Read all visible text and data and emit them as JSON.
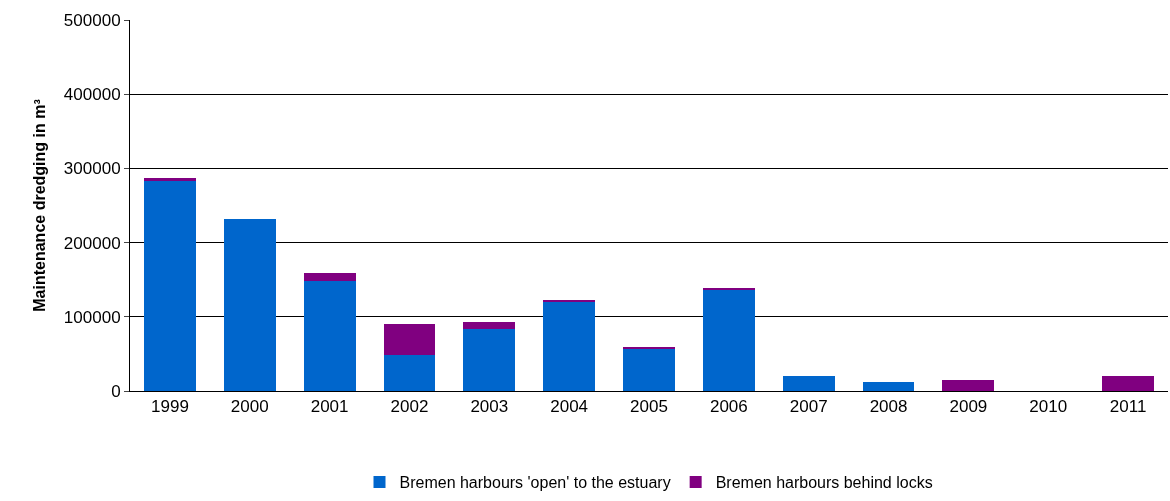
{
  "chart_data": {
    "type": "bar",
    "stacked": true,
    "ylabel": "Maintenance dredging in m³",
    "categories": [
      "1999",
      "2000",
      "2001",
      "2002",
      "2003",
      "2004",
      "2005",
      "2006",
      "2007",
      "2008",
      "2009",
      "2010",
      "2011"
    ],
    "series": [
      {
        "name": "Bremen harbours 'open' to the estuary",
        "color": "#0066cc",
        "values": [
          284000,
          232000,
          148000,
          49000,
          84000,
          120000,
          57000,
          136500,
          20600,
          11800,
          0,
          0,
          0
        ]
      },
      {
        "name": "Bremen harbours behind locks",
        "color": "#800080",
        "values": [
          2500,
          0,
          11000,
          41000,
          9000,
          3000,
          2000,
          2500,
          0,
          0,
          15500,
          0,
          20600
        ]
      }
    ],
    "ylim": [
      0,
      500000
    ],
    "yticks": [
      0,
      100000,
      200000,
      300000,
      400000,
      500000
    ],
    "grid": "y",
    "legend": "bottom"
  }
}
